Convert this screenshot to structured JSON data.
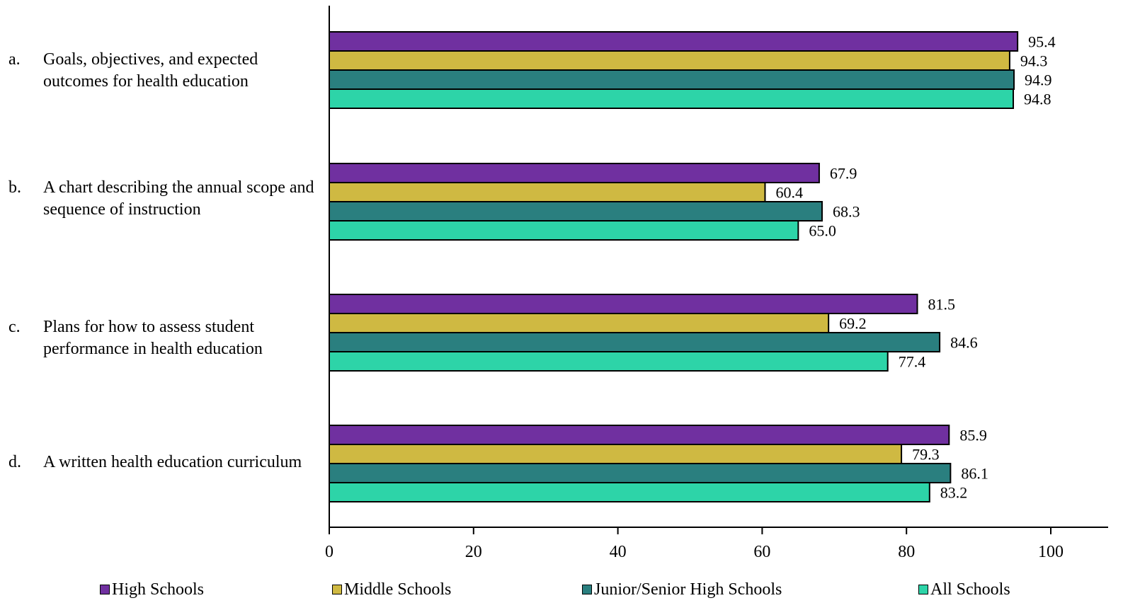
{
  "chart_data": {
    "type": "bar",
    "orientation": "horizontal",
    "categories": [
      {
        "letter": "a.",
        "text": "Goals, objectives, and expected outcomes for health education"
      },
      {
        "letter": "b.",
        "text": "A chart describing the annual scope and sequence of instruction"
      },
      {
        "letter": "c.",
        "text": "Plans for how to assess student performance in health education"
      },
      {
        "letter": "d.",
        "text": "A written health education curriculum"
      }
    ],
    "series": [
      {
        "name": "High Schools",
        "color": "#7030A0",
        "values": [
          95.4,
          67.9,
          81.5,
          85.9
        ],
        "labels": [
          "95.4",
          "67.9",
          "81.5",
          "85.9"
        ]
      },
      {
        "name": "Middle Schools",
        "color": "#CFB942",
        "values": [
          94.3,
          60.4,
          69.2,
          79.3
        ],
        "labels": [
          "94.3",
          "60.4",
          "69.2",
          "79.3"
        ]
      },
      {
        "name": "Junior/Senior High Schools",
        "color": "#2A7F7F",
        "values": [
          94.9,
          68.3,
          84.6,
          86.1
        ],
        "labels": [
          "94.9",
          "68.3",
          "84.6",
          "86.1"
        ]
      },
      {
        "name": "All Schools",
        "color": "#2DD4A8",
        "values": [
          94.8,
          65.0,
          77.4,
          83.2
        ],
        "labels": [
          "94.8",
          "65.0",
          "77.4",
          "83.2"
        ]
      }
    ],
    "xlim": [
      0,
      100
    ],
    "xticks": [
      0,
      20,
      40,
      60,
      80,
      100
    ],
    "xtick_labels": [
      "0",
      "20",
      "40",
      "60",
      "80",
      "100"
    ],
    "grid": false,
    "legend_position": "bottom"
  }
}
